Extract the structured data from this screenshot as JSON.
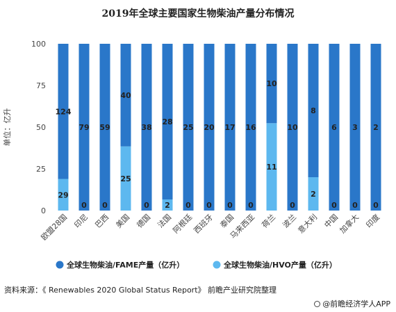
{
  "chart_data": {
    "type": "bar",
    "stacked": "percent",
    "title": "2019年全球主要国家生物柴油产量分布情况",
    "ylabel": "单位：亿升",
    "ylim": [
      0,
      100
    ],
    "yticks": [
      "0",
      "25",
      "50",
      "75",
      "100"
    ],
    "categories": [
      "欧盟28国",
      "印尼",
      "巴西",
      "美国",
      "德国",
      "法国",
      "阿根廷",
      "西班牙",
      "泰国",
      "马来西亚",
      "荷兰",
      "波兰",
      "意大利",
      "中国",
      "加拿大",
      "印度"
    ],
    "series": [
      {
        "name": "全球生物柴油/HVO产量（亿升）",
        "values": [
          29,
          0,
          0,
          25,
          0,
          2,
          0,
          0,
          0,
          0,
          11,
          0,
          2,
          0,
          0,
          0
        ],
        "color": "#5db8ef"
      },
      {
        "name": "全球生物柴油/FAME产量（亿升）",
        "values": [
          124,
          79,
          59,
          40,
          38,
          28,
          25,
          20,
          17,
          16,
          10,
          10,
          8,
          6,
          3,
          2
        ],
        "color": "#2a77c9"
      }
    ],
    "legend_position": "bottom",
    "legend": [
      "全球生物柴油/FAME产量（亿升）",
      "全球生物柴油/HVO产量（亿升）"
    ],
    "grid": false
  },
  "footer": {
    "source": "资料来源：《 Renewables 2020 Global Status Report》 前瞻产业研究院整理",
    "brand": "@前瞻经济学人APP"
  }
}
